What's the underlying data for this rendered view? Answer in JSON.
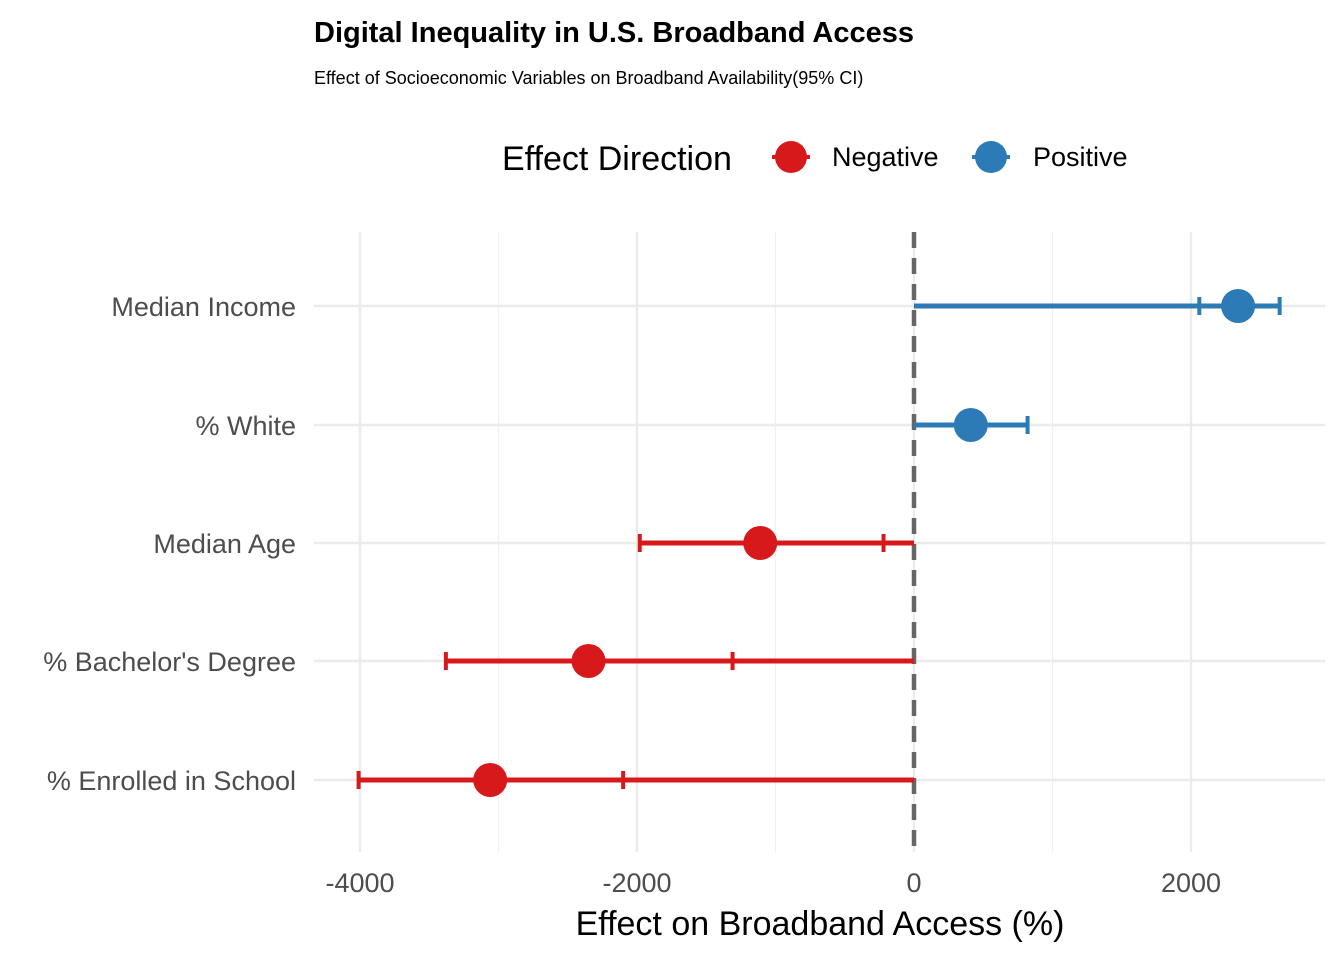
{
  "chart_data": {
    "type": "scatter",
    "title": "Digital Inequality in U.S. Broadband Access",
    "subtitle": "Effect of Socioeconomic Variables on Broadband Availability(95% CI)",
    "xlabel": "Effect on Broadband Access (%)",
    "ylabel": "",
    "xlim": [
      -4150,
      2950
    ],
    "x_ticks": [
      -4000,
      -2000,
      0,
      2000
    ],
    "x_tick_labels": [
      "-4000",
      "-2000",
      "0",
      "2000"
    ],
    "reference_line": 0,
    "grid": true,
    "legend": {
      "title": "Effect Direction",
      "placement": "top",
      "entries": [
        {
          "label": "Negative",
          "color": "#d7191c"
        },
        {
          "label": "Positive",
          "color": "#2c7bb6"
        }
      ]
    },
    "categories": [
      "Median Income",
      "% White",
      "Median Age",
      "% Bachelor's Degree",
      "% Enrolled in School"
    ],
    "series": [
      {
        "name": "Negative",
        "color": "#d7191c",
        "points": [
          {
            "category": "Median Age",
            "estimate": -1110,
            "ci_low": -1980,
            "ci_high": -220
          },
          {
            "category": "% Bachelor's Degree",
            "estimate": -2350,
            "ci_low": -3380,
            "ci_high": -1310
          },
          {
            "category": "% Enrolled in School",
            "estimate": -3060,
            "ci_low": -4010,
            "ci_high": -2100
          }
        ]
      },
      {
        "name": "Positive",
        "color": "#2c7bb6",
        "points": [
          {
            "category": "Median Income",
            "estimate": 2340,
            "ci_low": 2060,
            "ci_high": 2640
          },
          {
            "category": "% White",
            "estimate": 410,
            "ci_low": 0,
            "ci_high": 820
          }
        ]
      }
    ]
  }
}
